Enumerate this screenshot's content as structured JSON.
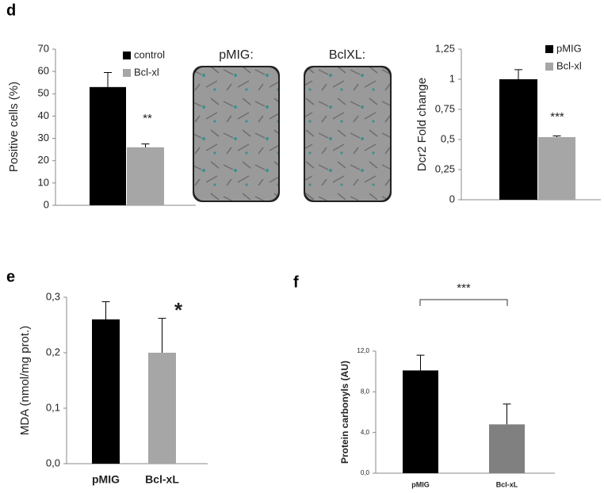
{
  "panel_labels": [
    "d",
    "e",
    "f"
  ],
  "images": [
    {
      "label": "pMIG:"
    },
    {
      "label": "BclXL:"
    }
  ],
  "chart_data": [
    {
      "type": "bar",
      "ylabel": "Positive cells (%)",
      "categories": [
        null
      ],
      "series": [
        {
          "name": "control",
          "color": "#000000",
          "values": [
            53
          ],
          "errors": [
            6.5
          ]
        },
        {
          "name": "Bcl-xl",
          "color": "#a6a6a6",
          "values": [
            26
          ],
          "errors": [
            1.5
          ]
        }
      ],
      "ylim": [
        0,
        70
      ],
      "yticks": [
        0,
        10,
        20,
        30,
        40,
        50,
        60,
        70
      ],
      "annotation": "**",
      "legend": "top-right"
    },
    {
      "type": "bar",
      "ylabel": "Dcr2 Fold change",
      "categories": [
        null
      ],
      "series": [
        {
          "name": "pMIG",
          "color": "#000000",
          "values": [
            1.0
          ],
          "errors": [
            0.08
          ]
        },
        {
          "name": "Bcl-xl",
          "color": "#a6a6a6",
          "values": [
            0.52
          ],
          "errors": [
            0.01
          ]
        }
      ],
      "ylim": [
        0,
        1.25
      ],
      "yticks": [
        0,
        {
          "value": 0.25,
          "label": "0,25"
        },
        {
          "value": 0.5,
          "label": "0,5"
        },
        {
          "value": 0.75,
          "label": "0,75"
        },
        1,
        {
          "value": 1.25,
          "label": "1,25"
        }
      ],
      "annotation": "***",
      "legend": "top-right"
    },
    {
      "type": "bar",
      "ylabel": "MDA (nmol/mg prot.)",
      "categories": [
        "pMIG",
        "Bcl-xL"
      ],
      "values": [
        0.26,
        0.2
      ],
      "errors": [
        0.032,
        0.062
      ],
      "colors": [
        "#000000",
        "#a6a6a6"
      ],
      "ylim": [
        0,
        0.3
      ],
      "yticks": [
        {
          "value": 0,
          "label": "0,0"
        },
        {
          "value": 0.1,
          "label": "0,1"
        },
        {
          "value": 0.2,
          "label": "0,2"
        },
        {
          "value": 0.3,
          "label": "0,3"
        }
      ],
      "annotation": "*"
    },
    {
      "type": "bar",
      "ylabel": "Protein carbonyls (AU)",
      "categories": [
        "pMIG",
        "Bcl-xL"
      ],
      "values": [
        10.1,
        4.8
      ],
      "errors": [
        1.5,
        2.0
      ],
      "colors": [
        "#000000",
        "#808080"
      ],
      "ylim": [
        0,
        12
      ],
      "yticks": [
        {
          "value": 0,
          "label": "0,0"
        },
        {
          "value": 4,
          "label": "4,0"
        },
        {
          "value": 8,
          "label": "8,0"
        },
        {
          "value": 12,
          "label": "12,0"
        }
      ],
      "annotation": "***"
    }
  ]
}
